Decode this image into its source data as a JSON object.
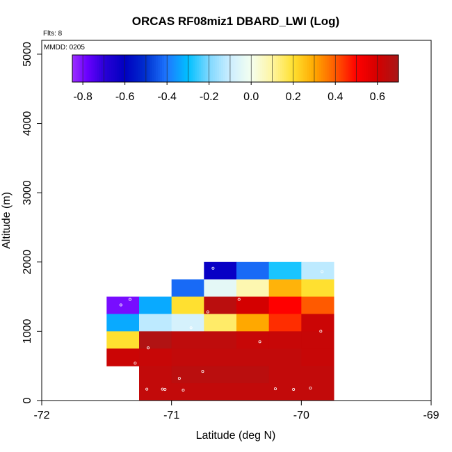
{
  "chart_data": {
    "type": "heatmap",
    "title": "ORCAS RF08miz1 DBARD_LWI (Log)",
    "xlabel": "Latitude (deg N)",
    "ylabel": "Altitude (m)",
    "xlim": [
      -72,
      -69
    ],
    "ylim": [
      0,
      5200
    ],
    "xticks": [
      -72,
      -71,
      -70,
      -69
    ],
    "yticks": [
      0,
      1000,
      2000,
      3000,
      4000,
      5000
    ],
    "flts_label": "Flts: 8",
    "mmdd_label": "MMDD: 0205",
    "colorbar": {
      "vmin": -0.85,
      "vmax": 0.7,
      "ticks": [
        -0.8,
        -0.6,
        -0.4,
        -0.2,
        0.0,
        0.2,
        0.4,
        0.6
      ],
      "tick_labels": [
        "-0.8",
        "-0.6",
        "-0.4",
        "-0.2",
        "0.0",
        "0.2",
        "0.4",
        "0.6"
      ],
      "stops": [
        {
          "v": -0.85,
          "c": "#9c2fff"
        },
        {
          "v": -0.78,
          "c": "#6a00ff"
        },
        {
          "v": -0.7,
          "c": "#2a00d8"
        },
        {
          "v": -0.6,
          "c": "#0000c0"
        },
        {
          "v": -0.5,
          "c": "#0030d0"
        },
        {
          "v": -0.4,
          "c": "#1e78ff"
        },
        {
          "v": -0.3,
          "c": "#00c0ff"
        },
        {
          "v": -0.2,
          "c": "#7fd8ff"
        },
        {
          "v": -0.1,
          "c": "#cdeeff"
        },
        {
          "v": 0.0,
          "c": "#f4fff0"
        },
        {
          "v": 0.1,
          "c": "#fff5a0"
        },
        {
          "v": 0.2,
          "c": "#ffe030"
        },
        {
          "v": 0.3,
          "c": "#ffa800"
        },
        {
          "v": 0.4,
          "c": "#ff5a00"
        },
        {
          "v": 0.5,
          "c": "#ff0000"
        },
        {
          "v": 0.6,
          "c": "#d40000"
        },
        {
          "v": 0.7,
          "c": "#a81818"
        }
      ]
    },
    "cell_width_deg": 0.25,
    "cell_height_m": 250,
    "cells": [
      {
        "x": -70.625,
        "y": 1875,
        "v": -0.62
      },
      {
        "x": -70.375,
        "y": 1875,
        "v": -0.42
      },
      {
        "x": -70.125,
        "y": 1875,
        "v": -0.28
      },
      {
        "x": -69.875,
        "y": 1875,
        "v": -0.12
      },
      {
        "x": -70.875,
        "y": 1625,
        "v": -0.42
      },
      {
        "x": -70.625,
        "y": 1625,
        "v": -0.04
      },
      {
        "x": -70.375,
        "y": 1625,
        "v": 0.08
      },
      {
        "x": -70.125,
        "y": 1625,
        "v": 0.28
      },
      {
        "x": -69.875,
        "y": 1625,
        "v": 0.2
      },
      {
        "x": -71.375,
        "y": 1375,
        "v": -0.8
      },
      {
        "x": -71.125,
        "y": 1375,
        "v": -0.33
      },
      {
        "x": -70.875,
        "y": 1375,
        "v": 0.2
      },
      {
        "x": -70.625,
        "y": 1375,
        "v": 0.66
      },
      {
        "x": -70.375,
        "y": 1375,
        "v": 0.6
      },
      {
        "x": -70.125,
        "y": 1375,
        "v": 0.5
      },
      {
        "x": -69.875,
        "y": 1375,
        "v": 0.4
      },
      {
        "x": -71.375,
        "y": 1125,
        "v": -0.33
      },
      {
        "x": -71.125,
        "y": 1125,
        "v": -0.12
      },
      {
        "x": -70.875,
        "y": 1125,
        "v": -0.08
      },
      {
        "x": -70.625,
        "y": 1125,
        "v": 0.15
      },
      {
        "x": -70.375,
        "y": 1125,
        "v": 0.3
      },
      {
        "x": -70.125,
        "y": 1125,
        "v": 0.45
      },
      {
        "x": -69.875,
        "y": 1125,
        "v": 0.62
      },
      {
        "x": -71.375,
        "y": 875,
        "v": 0.2
      },
      {
        "x": -71.125,
        "y": 875,
        "v": 0.68
      },
      {
        "x": -70.875,
        "y": 875,
        "v": 0.65
      },
      {
        "x": -70.625,
        "y": 875,
        "v": 0.65
      },
      {
        "x": -70.375,
        "y": 875,
        "v": 0.63
      },
      {
        "x": -70.125,
        "y": 875,
        "v": 0.63
      },
      {
        "x": -69.875,
        "y": 875,
        "v": 0.63
      },
      {
        "x": -71.375,
        "y": 625,
        "v": 0.62
      },
      {
        "x": -71.125,
        "y": 625,
        "v": 0.63
      },
      {
        "x": -70.875,
        "y": 625,
        "v": 0.64
      },
      {
        "x": -70.625,
        "y": 625,
        "v": 0.64
      },
      {
        "x": -70.375,
        "y": 625,
        "v": 0.64
      },
      {
        "x": -70.125,
        "y": 625,
        "v": 0.64
      },
      {
        "x": -69.875,
        "y": 625,
        "v": 0.63
      },
      {
        "x": -71.125,
        "y": 375,
        "v": 0.64
      },
      {
        "x": -70.875,
        "y": 375,
        "v": 0.66
      },
      {
        "x": -70.625,
        "y": 375,
        "v": 0.66
      },
      {
        "x": -70.375,
        "y": 375,
        "v": 0.66
      },
      {
        "x": -70.125,
        "y": 375,
        "v": 0.64
      },
      {
        "x": -69.875,
        "y": 375,
        "v": 0.64
      },
      {
        "x": -71.125,
        "y": 125,
        "v": 0.64
      },
      {
        "x": -70.875,
        "y": 125,
        "v": 0.64
      },
      {
        "x": -70.625,
        "y": 125,
        "v": 0.64
      },
      {
        "x": -70.375,
        "y": 125,
        "v": 0.64
      },
      {
        "x": -70.125,
        "y": 125,
        "v": 0.64
      },
      {
        "x": -69.875,
        "y": 125,
        "v": 0.64
      }
    ],
    "points": [
      {
        "x": -70.68,
        "y": 1910
      },
      {
        "x": -69.84,
        "y": 1860
      },
      {
        "x": -71.32,
        "y": 1460
      },
      {
        "x": -70.48,
        "y": 1460
      },
      {
        "x": -71.39,
        "y": 1380
      },
      {
        "x": -70.72,
        "y": 1280
      },
      {
        "x": -70.85,
        "y": 1050
      },
      {
        "x": -69.85,
        "y": 1000
      },
      {
        "x": -70.32,
        "y": 850
      },
      {
        "x": -71.18,
        "y": 760
      },
      {
        "x": -71.28,
        "y": 540
      },
      {
        "x": -70.76,
        "y": 420
      },
      {
        "x": -70.94,
        "y": 320
      },
      {
        "x": -71.19,
        "y": 165
      },
      {
        "x": -71.07,
        "y": 165
      },
      {
        "x": -71.05,
        "y": 160
      },
      {
        "x": -70.91,
        "y": 150
      },
      {
        "x": -70.2,
        "y": 170
      },
      {
        "x": -70.06,
        "y": 160
      },
      {
        "x": -69.93,
        "y": 180
      }
    ]
  }
}
